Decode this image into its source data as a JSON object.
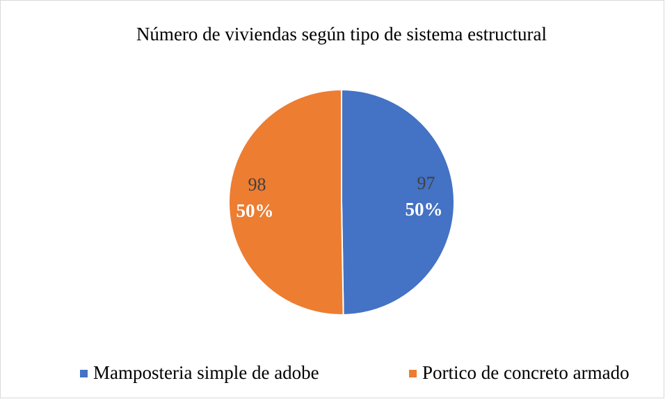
{
  "chart_data": {
    "type": "pie",
    "title": "Número de viviendas según tipo de sistema estructural",
    "categories": [
      "Mamposteria simple de adobe",
      "Portico de concreto armado"
    ],
    "values": [
      97,
      98
    ],
    "percent_labels": [
      "50%",
      "50%"
    ],
    "colors": [
      "#4472c4",
      "#ed7d31"
    ],
    "legend": "bottom"
  }
}
